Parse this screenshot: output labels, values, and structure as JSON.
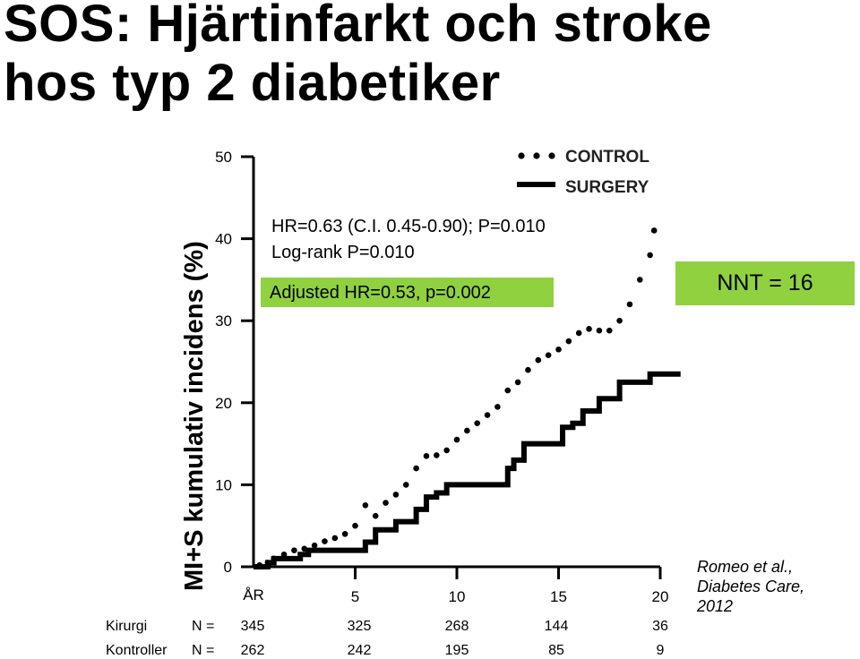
{
  "title_line1": "SOS: Hjärtinfarkt och stroke",
  "title_line2": "hos typ 2 diabetiker",
  "nnt_label": "NNT = 16",
  "citation": [
    "Romeo et al.,",
    "Diabetes Care,",
    "2012"
  ],
  "colors": {
    "nnt_box": "#8fd13f",
    "adjusted_box": "#8fd13f",
    "lines": "#000000"
  },
  "chart_data": {
    "type": "line",
    "ylabel": "MI+S kumulativ incidens (%)",
    "xlabel": "ÅR",
    "xlim": [
      0,
      20
    ],
    "ylim": [
      0,
      50
    ],
    "y_ticks": [
      "0",
      "10",
      "20",
      "30",
      "40",
      "50"
    ],
    "x_ticks": [
      "5",
      "10",
      "15",
      "20"
    ],
    "annotations": [
      "HR=0.63 (C.I. 0.45-0.90); P=0.010",
      "Log-rank P=0.010",
      "Adjusted HR=0.53, p=0.002"
    ],
    "legend_position": "top-right",
    "series": [
      {
        "name": "CONTROL",
        "style": "dotted",
        "x": [
          0.3,
          0.7,
          1,
          1.5,
          2,
          2.5,
          3,
          3.5,
          4,
          4.5,
          5,
          5.5,
          6,
          6.5,
          7,
          7.5,
          8,
          8.5,
          9,
          9.5,
          10,
          10.5,
          11,
          11.5,
          12,
          12.5,
          13,
          13.5,
          14,
          14.5,
          15,
          15.5,
          16,
          16.5,
          17,
          17.5,
          18,
          18.5,
          19,
          19.5,
          19.7
        ],
        "y": [
          0.2,
          0.5,
          1.0,
          1.5,
          2.0,
          2.2,
          2.6,
          3.1,
          3.5,
          4.0,
          5.0,
          7.5,
          6.2,
          7.8,
          8.8,
          10.0,
          12.0,
          13.5,
          13.6,
          14.2,
          15.5,
          16.6,
          17.5,
          18.5,
          19.5,
          21.5,
          22.5,
          24.0,
          25.2,
          25.8,
          26.5,
          27.5,
          28.5,
          29.0,
          28.8,
          28.8,
          30.0,
          32.0,
          35.0,
          38.0,
          41.0
        ]
      },
      {
        "name": "SURGERY",
        "style": "solid",
        "x": [
          0,
          0.7,
          1,
          2.3,
          2.7,
          5,
          5.5,
          6,
          7,
          8,
          8.5,
          9,
          9.5,
          12.3,
          12.5,
          12.8,
          13.3,
          14.7,
          15.2,
          15.7,
          16.2,
          17,
          18,
          19.5
        ],
        "y": [
          0,
          0.5,
          1.0,
          1.5,
          2.0,
          2.0,
          3.0,
          4.5,
          5.5,
          7.0,
          8.5,
          9.0,
          10.0,
          10.0,
          12.0,
          13.0,
          15.0,
          15.0,
          17.0,
          17.5,
          19.0,
          20.5,
          22.5,
          23.5
        ]
      }
    ],
    "risk_table": {
      "row_labels": [
        "Kirurgi",
        "Kontroller"
      ],
      "n_label": "N =",
      "rows": [
        {
          "label": "Kirurgi",
          "values": [
            "345",
            "325",
            "268",
            "144",
            "36"
          ]
        },
        {
          "label": "Kontroller",
          "values": [
            "262",
            "242",
            "195",
            "85",
            "9"
          ]
        }
      ]
    }
  }
}
